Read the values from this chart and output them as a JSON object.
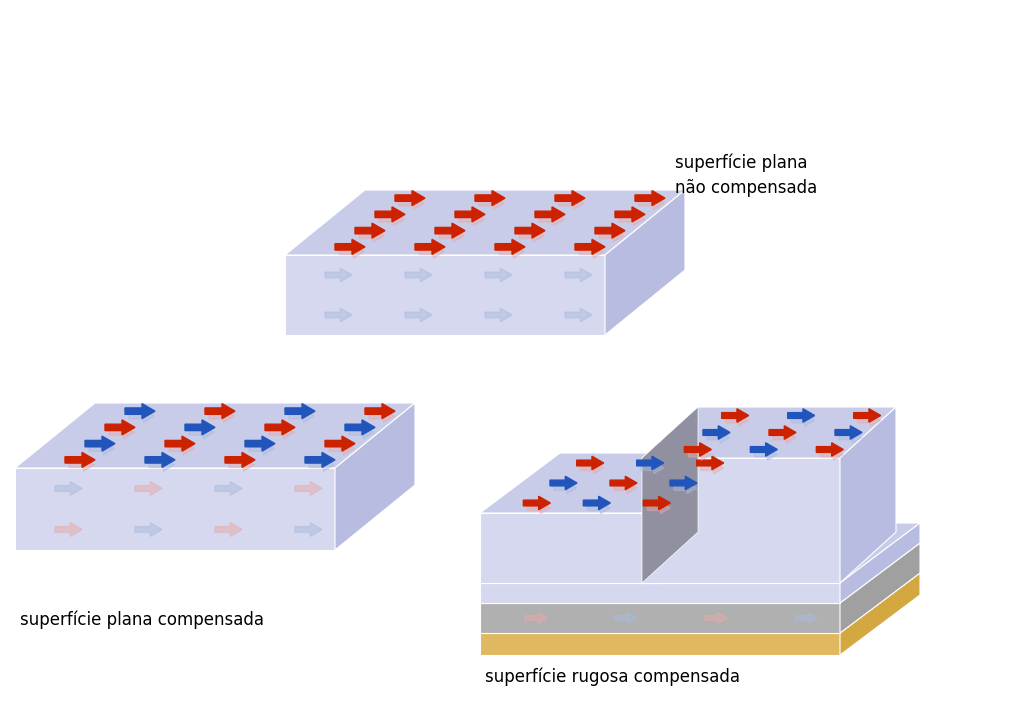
{
  "bg_color": "#ffffff",
  "box_top_color": "#c8cce8",
  "box_front_color": "#d5d8ee",
  "box_side_color": "#b8bce0",
  "box_top_lighter": "#dde0f5",
  "arrow_red": "#cc2200",
  "arrow_blue": "#2255bb",
  "arrow_pink": "#e8aaaa",
  "arrow_light_blue": "#aabbdd",
  "label1": "superfície plana\nnão compensada",
  "label2": "superfície plana compensada",
  "label3": "superfície rugosa compensada",
  "label_fontsize": 12,
  "gold_color": "#e8c87a",
  "gold_side": "#d4a840",
  "gold_front": "#e0b860",
  "gray_top": "#c0c0c0",
  "gray_front": "#b0b0b0",
  "gray_side": "#a0a0a0",
  "step_dark": "#9090a0"
}
